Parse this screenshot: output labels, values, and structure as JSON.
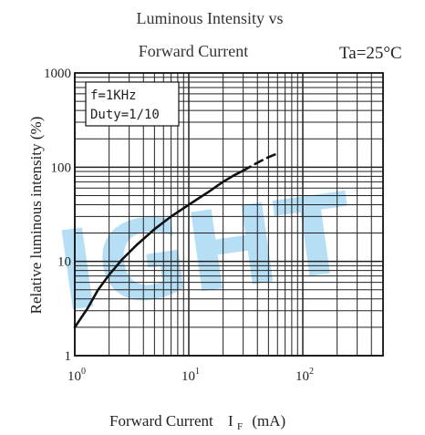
{
  "watermark": "IGHT",
  "chart_data": {
    "type": "line",
    "title_line1": "Luminous Intensity vs",
    "title_line2": "Forward Current",
    "condition": "Ta=25°C",
    "xlabel": "Forward Current",
    "xlabel_symbol": "I",
    "xlabel_sub": "F",
    "xlabel_unit": "(mA)",
    "ylabel": "Relative luminous intensity (%)",
    "x_scale": "log",
    "y_scale": "log",
    "xlim": [
      1,
      400
    ],
    "ylim": [
      1,
      1000
    ],
    "grid": true,
    "x_ticks": [
      {
        "value": 1,
        "base": "10",
        "exp": "0"
      },
      {
        "value": 10,
        "base": "10",
        "exp": "1"
      },
      {
        "value": 100,
        "base": "10",
        "exp": "2"
      }
    ],
    "y_ticks": [
      {
        "value": 1,
        "label": "1"
      },
      {
        "value": 10,
        "label": "10"
      },
      {
        "value": 100,
        "label": "100"
      },
      {
        "value": 1000,
        "label": "1000"
      }
    ],
    "annotation_lines": [
      "f=1KHz",
      "Duty=1/10"
    ],
    "series": [
      {
        "style": "solid",
        "points": [
          [
            1.0,
            2.0
          ],
          [
            1.3,
            3.2
          ],
          [
            1.6,
            5.0
          ],
          [
            2.0,
            7.2
          ],
          [
            2.6,
            10.5
          ],
          [
            3.5,
            15.0
          ],
          [
            5.0,
            22.0
          ],
          [
            7.0,
            30.0
          ],
          [
            10.0,
            40.0
          ],
          [
            15.0,
            55.0
          ],
          [
            20.0,
            70.0
          ],
          [
            25.0,
            82.0
          ],
          [
            30.0,
            92.0
          ]
        ]
      },
      {
        "style": "dashed",
        "points": [
          [
            30.0,
            92.0
          ],
          [
            38.0,
            108.0
          ],
          [
            48.0,
            125.0
          ],
          [
            60.0,
            140.0
          ]
        ]
      }
    ]
  }
}
